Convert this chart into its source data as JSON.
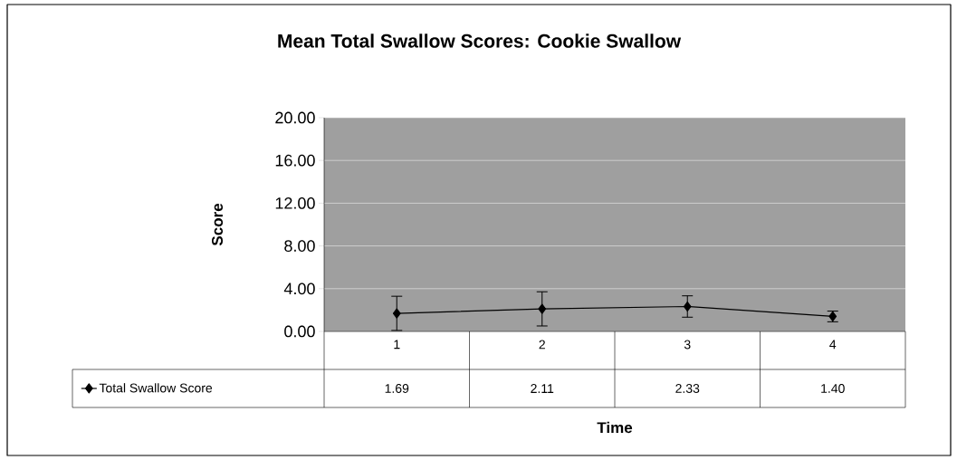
{
  "chart_data": {
    "type": "line",
    "title": "Mean Total Swallow Scores: Cookie Swallow",
    "xlabel": "Time",
    "ylabel": "Score",
    "categories": [
      "1",
      "2",
      "3",
      "4"
    ],
    "series": [
      {
        "name": "Total Swallow Score",
        "color": "#000000",
        "values": [
          1.69,
          2.11,
          2.33,
          1.4
        ],
        "errors": [
          1.6,
          1.6,
          1.0,
          0.5
        ],
        "value_labels": [
          "1.69",
          "2.11",
          "2.33",
          "1.40"
        ]
      }
    ],
    "ylim": [
      0,
      20
    ],
    "yticks": [
      {
        "value": 0,
        "label": "0.00"
      },
      {
        "value": 4,
        "label": "4.00"
      },
      {
        "value": 8,
        "label": "8.00"
      },
      {
        "value": 12,
        "label": "12.00"
      },
      {
        "value": 16,
        "label": "16.00"
      },
      {
        "value": 20,
        "label": "20.00"
      }
    ],
    "grid": "y",
    "legend": "bottom",
    "marker": "diamond",
    "line_style": "solid"
  }
}
